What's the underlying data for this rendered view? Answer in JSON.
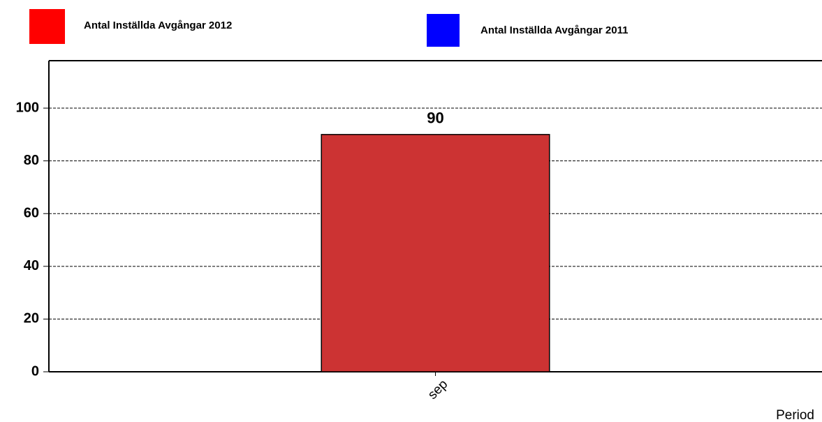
{
  "chart_data": {
    "type": "bar",
    "categories": [
      "sep"
    ],
    "series": [
      {
        "name": "Antal Inställda Avgångar 2012",
        "color": "#cc3333",
        "legend_color": "#ff0000",
        "values": [
          90
        ]
      },
      {
        "name": "Antal Inställda Avgångar 2011",
        "color": "#0000ff",
        "legend_color": "#0000ff",
        "values": [
          null
        ]
      }
    ],
    "x_label": "Period",
    "ylim": [
      0,
      118
    ],
    "yticks": [
      0,
      20,
      40,
      60,
      80,
      100
    ],
    "grid": true,
    "show_value_labels": true
  }
}
